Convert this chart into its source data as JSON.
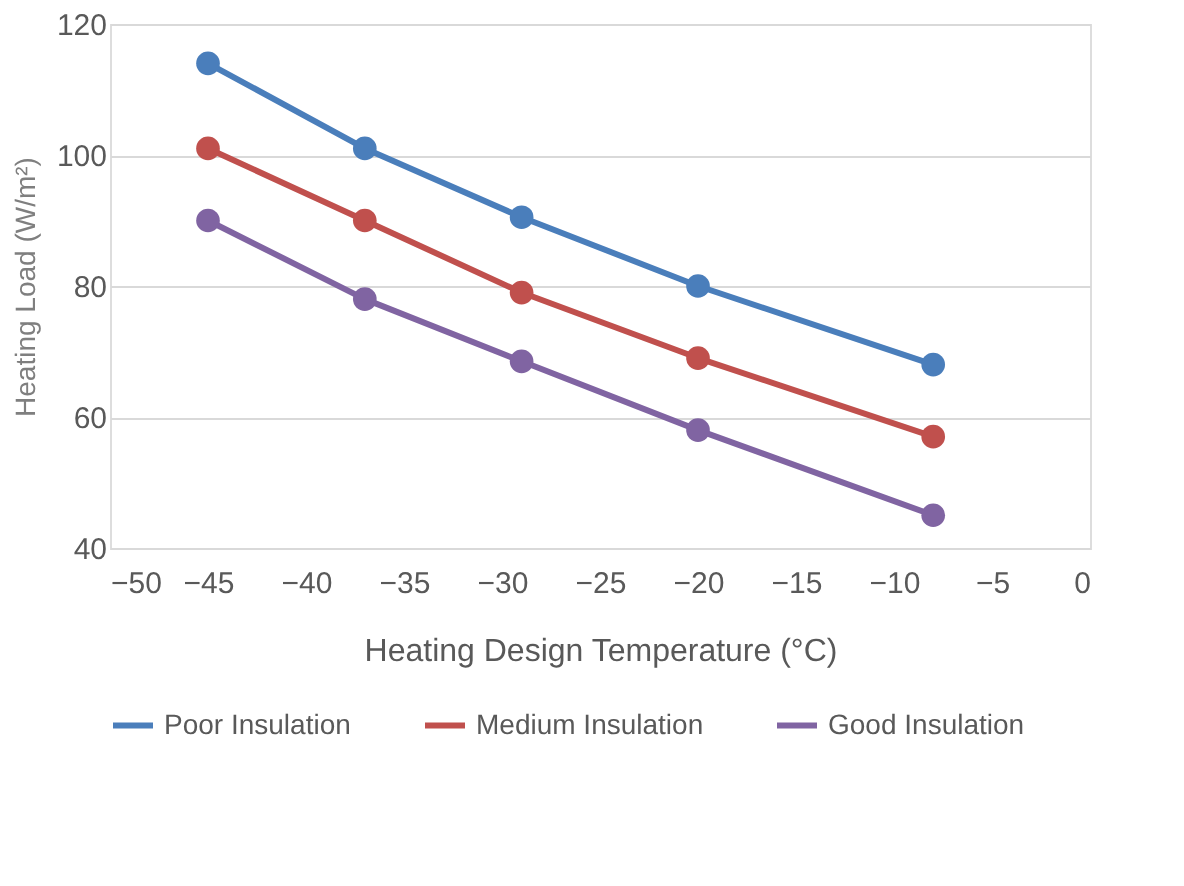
{
  "chart_data": {
    "type": "line",
    "xlabel": "Heating Design Temperature (°C)",
    "ylabel": "Heating Load (W/m²)",
    "x": [
      -45,
      -37,
      -29,
      -20,
      -8
    ],
    "series": [
      {
        "name": "Poor Insulation",
        "color": "#4a7ebb",
        "values": [
          114,
          101,
          90.5,
          80,
          68
        ]
      },
      {
        "name": "Medium Insulation",
        "color": "#c0504d",
        "values": [
          101,
          90,
          79,
          69,
          57
        ]
      },
      {
        "name": "Good Insulation",
        "color": "#8064a2",
        "values": [
          90,
          78,
          68.5,
          58,
          45
        ]
      }
    ],
    "xlim": [
      -50,
      0
    ],
    "xticks": [
      -50,
      -45,
      -40,
      -35,
      -30,
      -25,
      -20,
      -15,
      -10,
      -5,
      0
    ],
    "ylim": [
      40,
      120
    ],
    "yticks": [
      40,
      60,
      80,
      100,
      120
    ],
    "grid": "y",
    "legend": "bottom",
    "marker": "circle",
    "line_style": "solid"
  }
}
